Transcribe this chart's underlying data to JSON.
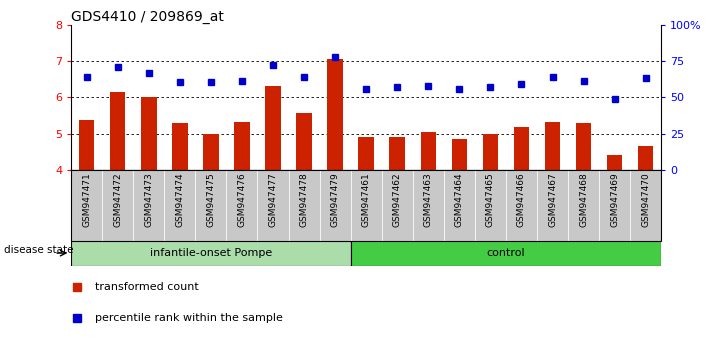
{
  "title": "GDS4410 / 209869_at",
  "samples": [
    "GSM947471",
    "GSM947472",
    "GSM947473",
    "GSM947474",
    "GSM947475",
    "GSM947476",
    "GSM947477",
    "GSM947478",
    "GSM947479",
    "GSM947461",
    "GSM947462",
    "GSM947463",
    "GSM947464",
    "GSM947465",
    "GSM947466",
    "GSM947467",
    "GSM947468",
    "GSM947469",
    "GSM947470"
  ],
  "bar_values": [
    5.38,
    6.15,
    6.0,
    5.28,
    5.0,
    5.32,
    6.32,
    5.58,
    7.05,
    4.92,
    4.92,
    5.05,
    4.85,
    5.0,
    5.18,
    5.32,
    5.28,
    4.42,
    4.65
  ],
  "dot_values": [
    6.55,
    6.85,
    6.68,
    6.42,
    6.42,
    6.45,
    6.88,
    6.55,
    7.12,
    6.22,
    6.28,
    6.32,
    6.22,
    6.28,
    6.38,
    6.55,
    6.45,
    5.95,
    6.52
  ],
  "group1_label": "infantile-onset Pompe",
  "group2_label": "control",
  "group1_count": 9,
  "group2_count": 10,
  "ylim_left": [
    4,
    8
  ],
  "ylim_right": [
    0,
    100
  ],
  "yticks_left": [
    4,
    5,
    6,
    7,
    8
  ],
  "yticks_right": [
    0,
    25,
    50,
    75,
    100
  ],
  "bar_color": "#CC2200",
  "dot_color": "#0000CC",
  "group1_bg": "#AADDAA",
  "group2_bg": "#44CC44",
  "sample_bg": "#C8C8C8",
  "legend_bar_label": "transformed count",
  "legend_dot_label": "percentile rank within the sample",
  "disease_state_label": "disease state"
}
